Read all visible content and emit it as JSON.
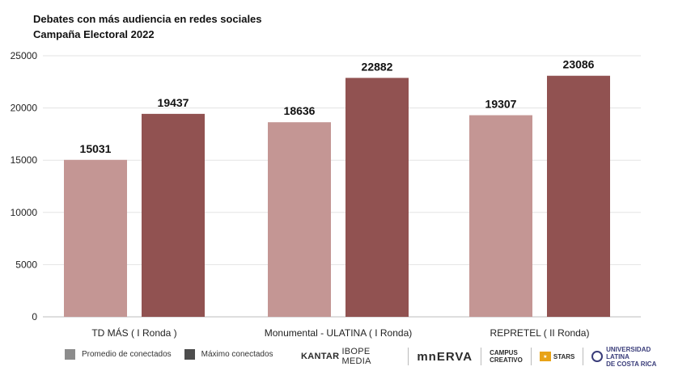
{
  "chart_data": {
    "type": "bar",
    "title": "Debates con más audiencia en redes sociales",
    "subtitle": "Campaña Electoral 2022",
    "xlabel": "",
    "ylabel": "",
    "ylim": [
      0,
      25000
    ],
    "yticks": [
      0,
      5000,
      10000,
      15000,
      20000,
      25000
    ],
    "categories": [
      "TD MÁS ( I Ronda )",
      "Monumental - ULATINA ( I Ronda)",
      "REPRETEL ( II Ronda)"
    ],
    "series": [
      {
        "name": "Promedio de conectados",
        "values": [
          15031,
          18636,
          19307
        ],
        "color": "#c49694"
      },
      {
        "name": "Máximo conectados",
        "values": [
          19437,
          22882,
          23086
        ],
        "color": "#915251"
      }
    ],
    "grid": true,
    "legend_position": "bottom-left",
    "legend_swatch_colors": [
      "#8c8c8c",
      "#4d4d4d"
    ]
  },
  "logos": {
    "kantar_bold": "KANTAR",
    "kantar_light": "IBOPE MEDIA",
    "minerva": "mnERVA",
    "campus_line1": "CAMPUS",
    "campus_line2": "CREATIVO",
    "stars": "STARS",
    "ulatina_line1": "UNIVERSIDAD LATINA",
    "ulatina_line2": "DE COSTA RICA"
  }
}
